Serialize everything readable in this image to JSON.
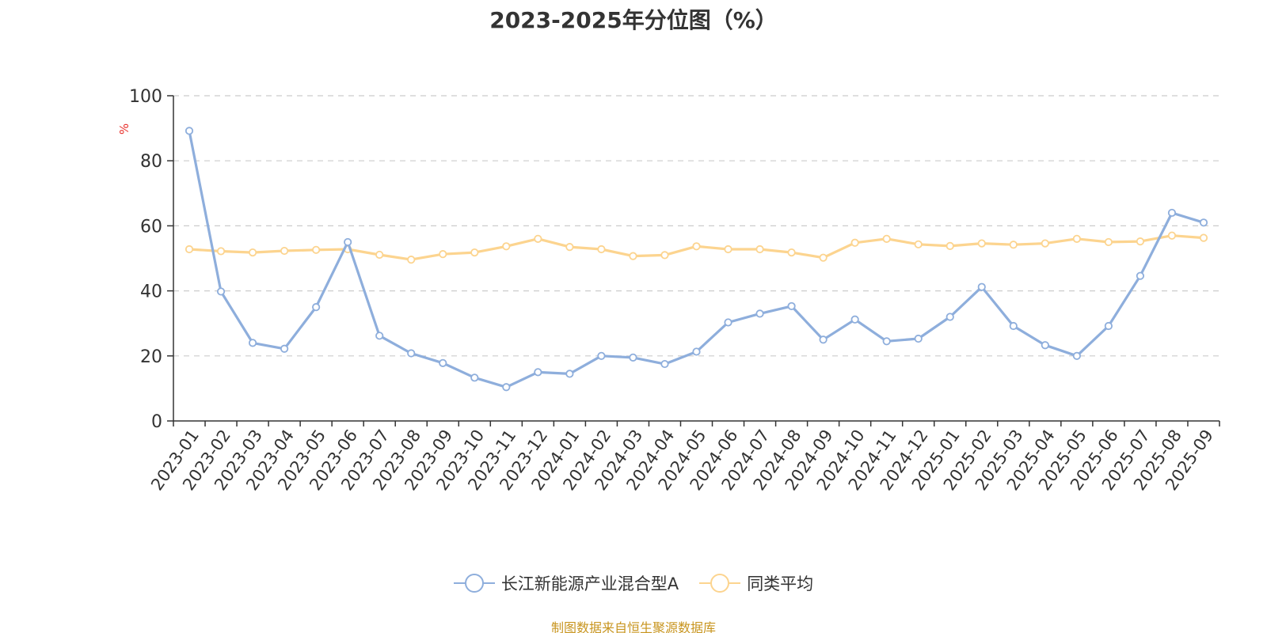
{
  "title": "2023-2025年分位图（%）",
  "source": "制图数据来自恒生聚源数据库",
  "colors": {
    "series1": "#8eaedc",
    "series2": "#fcd48f",
    "axis": "#333333",
    "grid": "#cccccc",
    "unit": "#e8302b",
    "source": "#c8951f"
  },
  "legend": {
    "items": [
      "长江新能源产业混合型A",
      "同类平均"
    ]
  },
  "chart_data": {
    "type": "line",
    "title": "2023-2025年分位图（%）",
    "xlabel": "",
    "ylabel": "%",
    "ylim": [
      0,
      100
    ],
    "yticks": [
      0,
      20,
      40,
      60,
      80,
      100
    ],
    "grid": true,
    "legend_position": "bottom",
    "categories": [
      "2023-01",
      "2023-02",
      "2023-03",
      "2023-04",
      "2023-05",
      "2023-06",
      "2023-07",
      "2023-08",
      "2023-09",
      "2023-10",
      "2023-11",
      "2023-12",
      "2024-01",
      "2024-02",
      "2024-03",
      "2024-04",
      "2024-05",
      "2024-06",
      "2024-07",
      "2024-08",
      "2024-09",
      "2024-10",
      "2024-11",
      "2024-12",
      "2025-01",
      "2025-02",
      "2025-03",
      "2025-04",
      "2025-05",
      "2025-06",
      "2025-07",
      "2025-08",
      "2025-09"
    ],
    "series": [
      {
        "name": "长江新能源产业混合型A",
        "color": "#8eaedc",
        "values": [
          89.2,
          39.8,
          24.0,
          22.2,
          35.0,
          55.0,
          26.2,
          20.8,
          17.8,
          13.3,
          10.4,
          15.0,
          14.5,
          20.0,
          19.5,
          17.5,
          21.3,
          30.3,
          33.0,
          35.3,
          25.0,
          31.2,
          24.5,
          25.3,
          32.0,
          41.2,
          29.2,
          23.3,
          20.0,
          29.2,
          44.6,
          64.0,
          61.0
        ]
      },
      {
        "name": "同类平均",
        "color": "#fcd48f",
        "values": [
          52.8,
          52.2,
          51.8,
          52.3,
          52.6,
          52.8,
          51.1,
          49.6,
          51.3,
          51.8,
          53.7,
          56.0,
          53.5,
          52.8,
          50.7,
          51.0,
          53.7,
          52.8,
          52.8,
          51.8,
          50.2,
          54.8,
          56.0,
          54.3,
          53.8,
          54.6,
          54.2,
          54.6,
          56.0,
          55.0,
          55.2,
          57.0,
          56.3
        ]
      }
    ]
  }
}
